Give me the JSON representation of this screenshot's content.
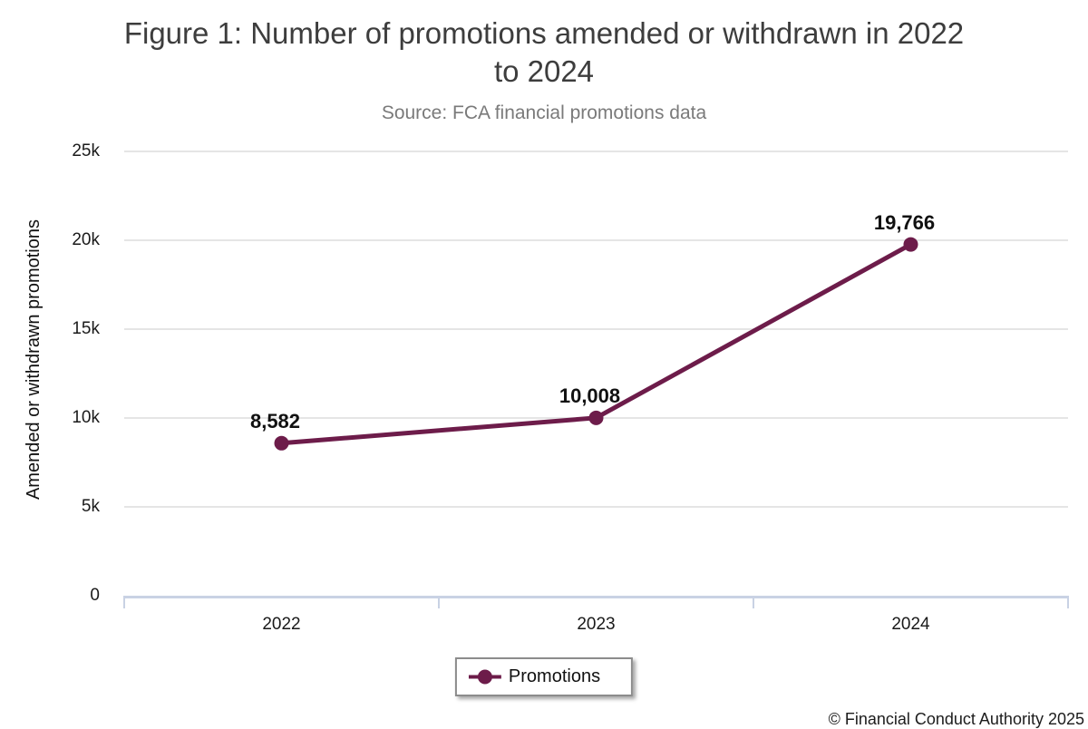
{
  "footer": "© Financial Conduct Authority 2025",
  "chart_data": {
    "type": "line",
    "title": "Figure 1: Number of promotions amended or withdrawn in 2022 to 2024",
    "subtitle": "Source: FCA financial promotions data",
    "categories": [
      "2022",
      "2023",
      "2024"
    ],
    "series": [
      {
        "name": "Promotions",
        "values": [
          8582,
          10008,
          19766
        ],
        "point_labels": [
          "8,582",
          "10,008",
          "19,766"
        ],
        "color": "#6d1c4a"
      }
    ],
    "xlabel": "",
    "ylabel": "Amended or withdrawn promotions",
    "ylim": [
      0,
      25000
    ],
    "y_tick_labels": [
      "25k",
      "20k",
      "15k",
      "10k",
      "5k",
      "0"
    ],
    "grid": "horizontal",
    "legend_position": "bottom"
  },
  "colors": {
    "accent": "#6d1c4a",
    "gridline": "#e5e5e5",
    "axis_line": "#c9d2e4",
    "title_text": "#3d3d3d",
    "subtitle_text": "#7a7a7a",
    "label_text": "#1a1a1a"
  }
}
